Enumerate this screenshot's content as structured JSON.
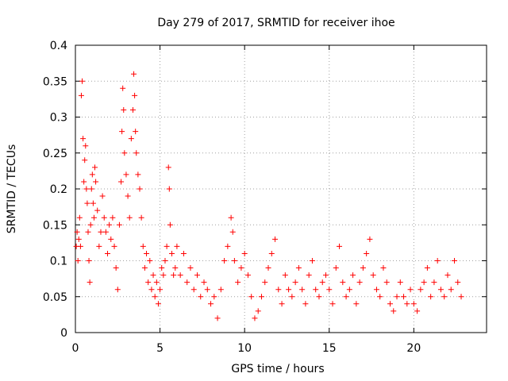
{
  "chart_data": {
    "type": "scatter",
    "title": "Day 279 of 2017, SRMTID for receiver ihoe",
    "xlabel": "GPS time / hours",
    "ylabel": "SRMTID / TECUs",
    "xlim": [
      0,
      24.3
    ],
    "ylim": [
      0,
      0.4
    ],
    "xticks": [
      0,
      5,
      10,
      15,
      20
    ],
    "xtick_labels": [
      "0",
      "5",
      "10",
      "15",
      "20"
    ],
    "yticks": [
      0,
      0.05,
      0.1,
      0.15,
      0.2,
      0.25,
      0.3,
      0.35,
      0.4
    ],
    "ytick_labels": [
      "0",
      "0.05",
      "0.1",
      "0.15",
      "0.2",
      "0.25",
      "0.3",
      "0.35",
      "0.4"
    ],
    "grid": true,
    "marker": "+",
    "marker_color": "#ff0000",
    "series": [
      {
        "name": "SRMTID",
        "points": [
          [
            0.05,
            0.12
          ],
          [
            0.1,
            0.14
          ],
          [
            0.15,
            0.1
          ],
          [
            0.2,
            0.13
          ],
          [
            0.25,
            0.16
          ],
          [
            0.3,
            0.12
          ],
          [
            0.35,
            0.33
          ],
          [
            0.4,
            0.35
          ],
          [
            0.45,
            0.27
          ],
          [
            0.5,
            0.21
          ],
          [
            0.55,
            0.24
          ],
          [
            0.6,
            0.26
          ],
          [
            0.65,
            0.2
          ],
          [
            0.7,
            0.18
          ],
          [
            0.75,
            0.14
          ],
          [
            0.8,
            0.1
          ],
          [
            0.85,
            0.07
          ],
          [
            0.9,
            0.15
          ],
          [
            0.95,
            0.2
          ],
          [
            1.0,
            0.22
          ],
          [
            1.05,
            0.18
          ],
          [
            1.1,
            0.16
          ],
          [
            1.15,
            0.23
          ],
          [
            1.2,
            0.21
          ],
          [
            1.3,
            0.17
          ],
          [
            1.4,
            0.12
          ],
          [
            1.5,
            0.14
          ],
          [
            1.6,
            0.19
          ],
          [
            1.7,
            0.16
          ],
          [
            1.8,
            0.14
          ],
          [
            1.9,
            0.11
          ],
          [
            2.0,
            0.15
          ],
          [
            2.1,
            0.13
          ],
          [
            2.2,
            0.16
          ],
          [
            2.3,
            0.12
          ],
          [
            2.4,
            0.09
          ],
          [
            2.5,
            0.06
          ],
          [
            2.6,
            0.15
          ],
          [
            2.7,
            0.21
          ],
          [
            2.75,
            0.28
          ],
          [
            2.8,
            0.34
          ],
          [
            2.85,
            0.31
          ],
          [
            2.9,
            0.25
          ],
          [
            3.0,
            0.22
          ],
          [
            3.1,
            0.19
          ],
          [
            3.2,
            0.16
          ],
          [
            3.3,
            0.27
          ],
          [
            3.4,
            0.31
          ],
          [
            3.45,
            0.36
          ],
          [
            3.5,
            0.33
          ],
          [
            3.55,
            0.28
          ],
          [
            3.6,
            0.25
          ],
          [
            3.7,
            0.22
          ],
          [
            3.8,
            0.2
          ],
          [
            3.9,
            0.16
          ],
          [
            4.0,
            0.12
          ],
          [
            4.1,
            0.09
          ],
          [
            4.2,
            0.11
          ],
          [
            4.3,
            0.07
          ],
          [
            4.4,
            0.1
          ],
          [
            4.5,
            0.06
          ],
          [
            4.6,
            0.08
          ],
          [
            4.7,
            0.05
          ],
          [
            4.8,
            0.07
          ],
          [
            4.9,
            0.04
          ],
          [
            5.0,
            0.06
          ],
          [
            5.1,
            0.09
          ],
          [
            5.2,
            0.08
          ],
          [
            5.3,
            0.1
          ],
          [
            5.4,
            0.12
          ],
          [
            5.5,
            0.23
          ],
          [
            5.55,
            0.2
          ],
          [
            5.6,
            0.15
          ],
          [
            5.7,
            0.11
          ],
          [
            5.8,
            0.08
          ],
          [
            5.9,
            0.09
          ],
          [
            6.0,
            0.12
          ],
          [
            6.2,
            0.08
          ],
          [
            6.4,
            0.11
          ],
          [
            6.6,
            0.07
          ],
          [
            6.8,
            0.09
          ],
          [
            7.0,
            0.06
          ],
          [
            7.2,
            0.08
          ],
          [
            7.4,
            0.05
          ],
          [
            7.6,
            0.07
          ],
          [
            7.8,
            0.06
          ],
          [
            8.0,
            0.04
          ],
          [
            8.2,
            0.05
          ],
          [
            8.4,
            0.02
          ],
          [
            8.6,
            0.06
          ],
          [
            8.8,
            0.1
          ],
          [
            9.0,
            0.12
          ],
          [
            9.2,
            0.16
          ],
          [
            9.3,
            0.14
          ],
          [
            9.4,
            0.1
          ],
          [
            9.6,
            0.07
          ],
          [
            9.8,
            0.09
          ],
          [
            10.0,
            0.11
          ],
          [
            10.2,
            0.08
          ],
          [
            10.4,
            0.05
          ],
          [
            10.6,
            0.02
          ],
          [
            10.8,
            0.03
          ],
          [
            11.0,
            0.05
          ],
          [
            11.2,
            0.07
          ],
          [
            11.4,
            0.09
          ],
          [
            11.6,
            0.11
          ],
          [
            11.8,
            0.13
          ],
          [
            12.0,
            0.06
          ],
          [
            12.2,
            0.04
          ],
          [
            12.4,
            0.08
          ],
          [
            12.6,
            0.06
          ],
          [
            12.8,
            0.05
          ],
          [
            13.0,
            0.07
          ],
          [
            13.2,
            0.09
          ],
          [
            13.4,
            0.06
          ],
          [
            13.6,
            0.04
          ],
          [
            13.8,
            0.08
          ],
          [
            14.0,
            0.1
          ],
          [
            14.2,
            0.06
          ],
          [
            14.4,
            0.05
          ],
          [
            14.6,
            0.07
          ],
          [
            14.8,
            0.08
          ],
          [
            15.0,
            0.06
          ],
          [
            15.2,
            0.04
          ],
          [
            15.4,
            0.09
          ],
          [
            15.6,
            0.12
          ],
          [
            15.8,
            0.07
          ],
          [
            16.0,
            0.05
          ],
          [
            16.2,
            0.06
          ],
          [
            16.4,
            0.08
          ],
          [
            16.6,
            0.04
          ],
          [
            16.8,
            0.07
          ],
          [
            17.0,
            0.09
          ],
          [
            17.2,
            0.11
          ],
          [
            17.4,
            0.13
          ],
          [
            17.6,
            0.08
          ],
          [
            17.8,
            0.06
          ],
          [
            18.0,
            0.05
          ],
          [
            18.2,
            0.09
          ],
          [
            18.4,
            0.07
          ],
          [
            18.6,
            0.04
          ],
          [
            18.8,
            0.03
          ],
          [
            19.0,
            0.05
          ],
          [
            19.2,
            0.07
          ],
          [
            19.4,
            0.05
          ],
          [
            19.6,
            0.04
          ],
          [
            19.8,
            0.06
          ],
          [
            20.0,
            0.04
          ],
          [
            20.2,
            0.03
          ],
          [
            20.4,
            0.06
          ],
          [
            20.6,
            0.07
          ],
          [
            20.8,
            0.09
          ],
          [
            21.0,
            0.05
          ],
          [
            21.2,
            0.07
          ],
          [
            21.4,
            0.1
          ],
          [
            21.6,
            0.06
          ],
          [
            21.8,
            0.05
          ],
          [
            22.0,
            0.08
          ],
          [
            22.2,
            0.06
          ],
          [
            22.4,
            0.1
          ],
          [
            22.6,
            0.07
          ],
          [
            22.8,
            0.05
          ]
        ]
      }
    ]
  }
}
